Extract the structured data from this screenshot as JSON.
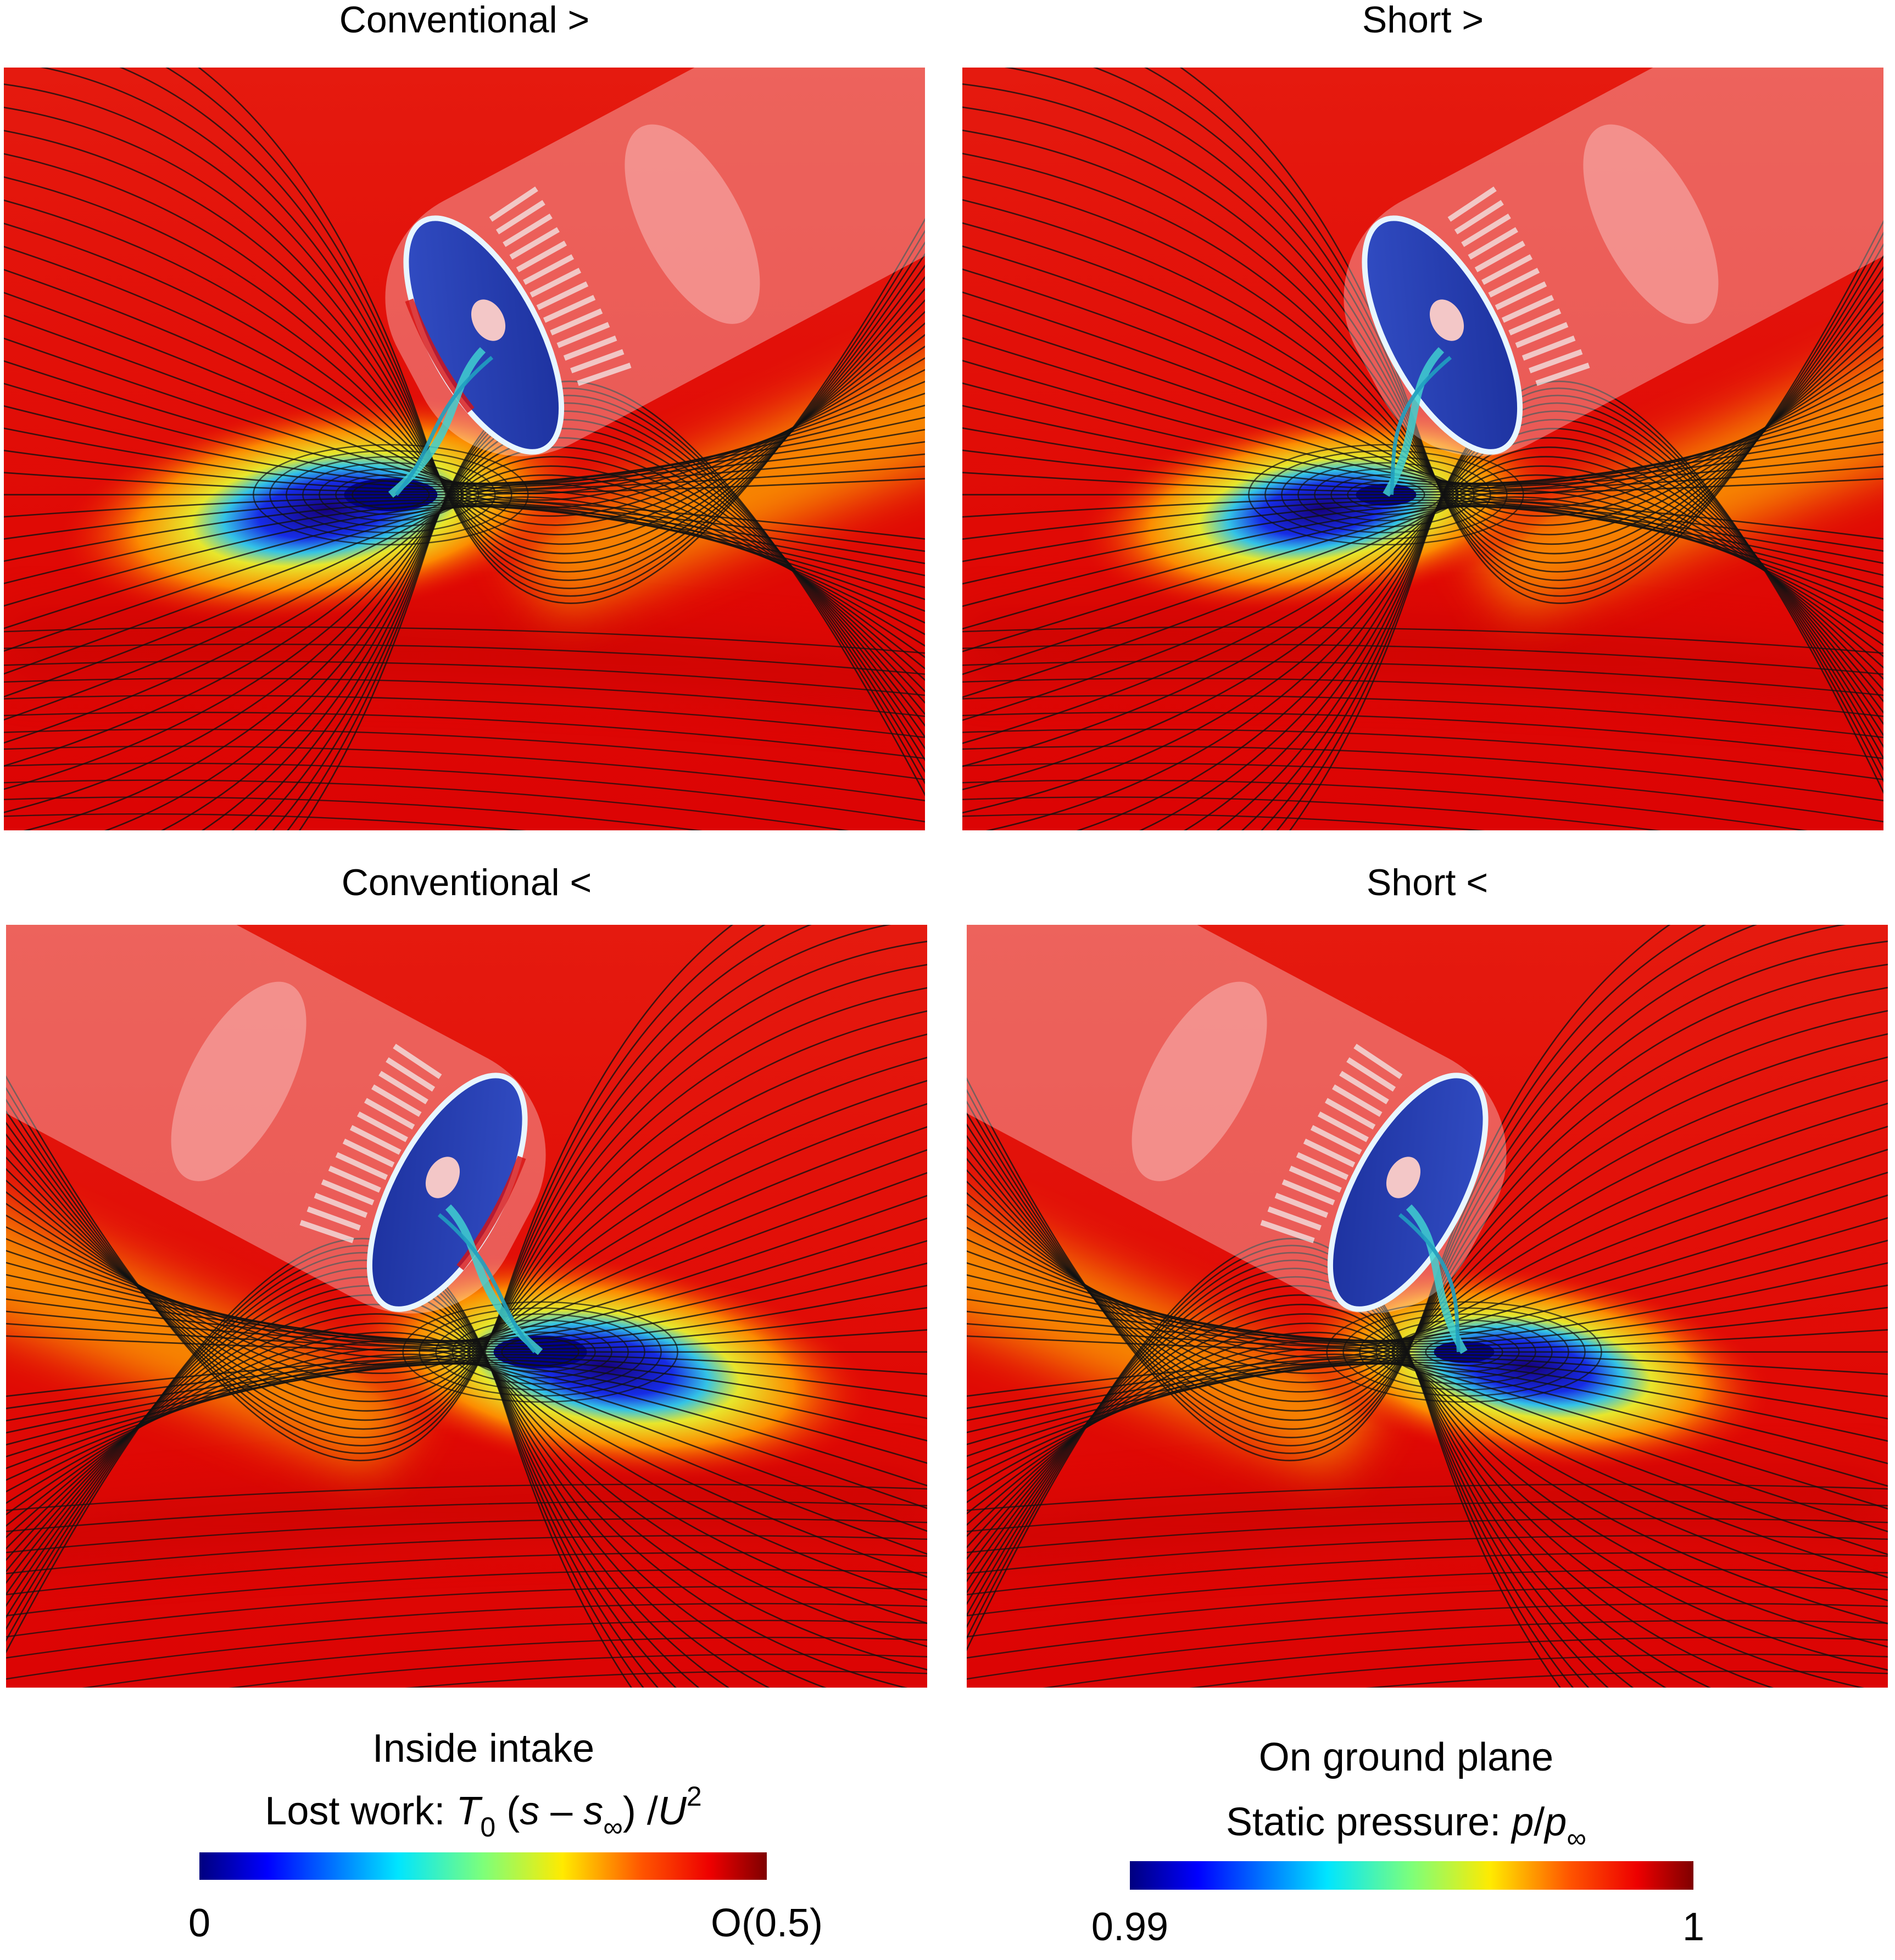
{
  "panels": [
    {
      "title": "Conventional >"
    },
    {
      "title": "Short >"
    },
    {
      "title": "Conventional <"
    },
    {
      "title": "Short <"
    }
  ],
  "colorbars": [
    {
      "title": "Inside intake",
      "label": [
        {
          "text": "Lost work:  "
        },
        {
          "text": "T",
          "style": "italic"
        },
        {
          "text": "0",
          "style": "sub"
        },
        {
          "text": " ("
        },
        {
          "text": "s",
          "style": "italic"
        },
        {
          "text": " – "
        },
        {
          "text": "s",
          "style": "italic"
        },
        {
          "text": "∞",
          "style": "sub"
        },
        {
          "text": ") /"
        },
        {
          "text": "U",
          "style": "italic"
        },
        {
          "text": "2",
          "style": "sup"
        }
      ],
      "min_label": "0",
      "max_label": "O(0.5)"
    },
    {
      "title": "On ground plane",
      "label": [
        {
          "text": "Static pressure: "
        },
        {
          "text": "p",
          "style": "italic"
        },
        {
          "text": "/"
        },
        {
          "text": "p",
          "style": "italic"
        },
        {
          "text": "∞",
          "style": "sub"
        }
      ],
      "min_label": "0.99",
      "max_label": "1"
    }
  ]
}
